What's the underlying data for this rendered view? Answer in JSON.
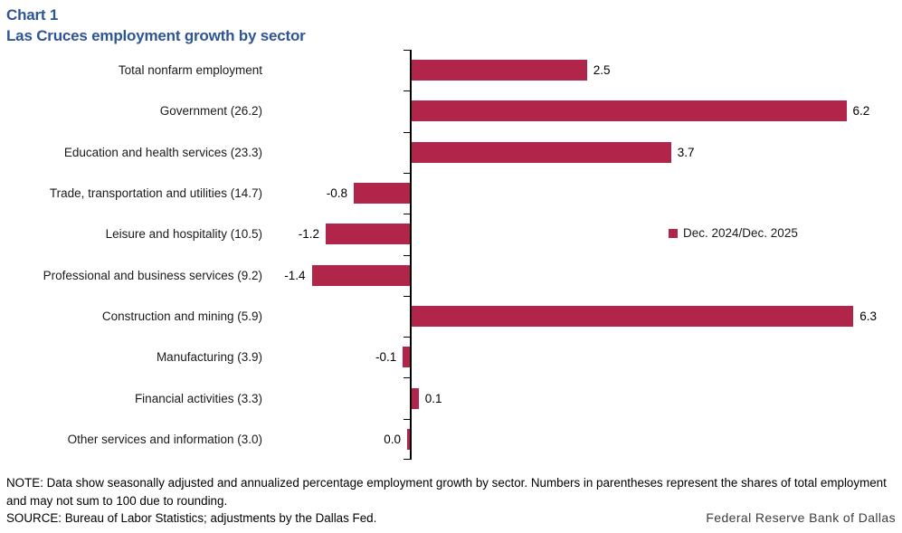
{
  "header": {
    "chart_label": "Chart 1",
    "title": "Las Cruces employment growth by sector"
  },
  "legend": {
    "label": "Dec. 2024/Dec. 2025"
  },
  "footer": {
    "note": "NOTE: Data show seasonally adjusted and annualized percentage employment growth by sector. Numbers in parentheses represent the shares of total employment and may not sum to 100 due to rounding.",
    "source": "SOURCE: Bureau of Labor Statistics; adjustments by the Dallas Fed.",
    "branding": "Federal Reserve Bank of Dallas"
  },
  "colors": {
    "bar": "#B1254A",
    "title": "#2E5594",
    "axis": "#000000"
  },
  "chart_data": {
    "type": "bar",
    "orientation": "horizontal",
    "title": "Las Cruces employment growth by sector",
    "categories": [
      "Total nonfarm employment",
      "Government (26.2)",
      "Education and health services (23.3)",
      "Trade, transportation and utilities (14.7)",
      "Leisure and hospitality (10.5)",
      "Professional and business services (9.2)",
      "Construction and mining (5.9)",
      "Manufacturing (3.9)",
      "Financial activities (3.3)",
      "Other services and information (3.0)"
    ],
    "values": [
      2.5,
      6.2,
      3.7,
      -0.8,
      -1.2,
      -1.4,
      6.3,
      -0.1,
      0.1,
      0.0
    ],
    "value_labels": [
      "2.5",
      "6.2",
      "3.7",
      "-0.8",
      "-1.2",
      "-1.4",
      "6.3",
      "-0.1",
      "0.1",
      "0.0"
    ],
    "series": [
      {
        "name": "Dec. 2024/Dec. 2025",
        "values": [
          2.5,
          6.2,
          3.7,
          -0.8,
          -1.2,
          -1.4,
          6.3,
          -0.1,
          0.1,
          0.0
        ]
      }
    ],
    "xlim": [
      -2.2,
      7.0
    ],
    "grid": false,
    "legend_position": "right-middle"
  }
}
